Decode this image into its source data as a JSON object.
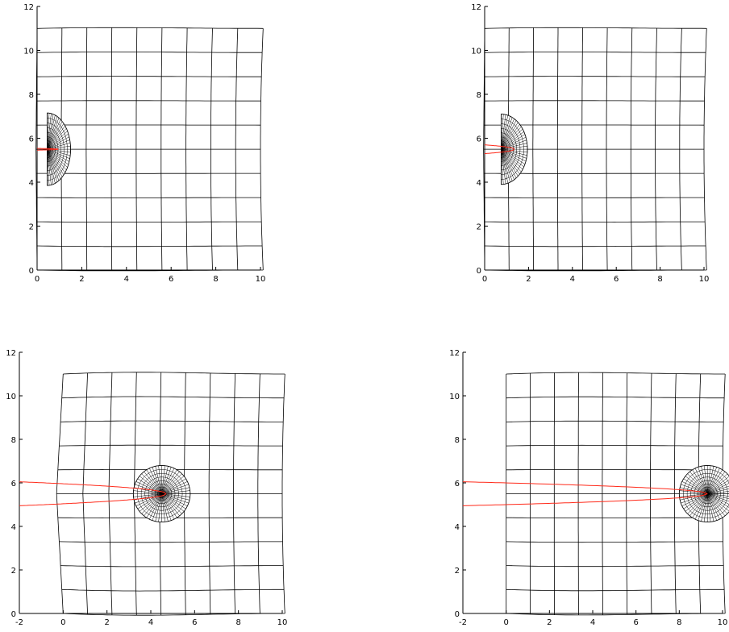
{
  "colors": {
    "mesh": "#000000",
    "crack": "#ff2a1a",
    "background": "#ffffff"
  },
  "chart_data": [
    {
      "type": "mesh",
      "panel": "top-left",
      "xlim": [
        0,
        10
      ],
      "ylim": [
        0,
        12
      ],
      "xticks": [
        0,
        2,
        4,
        6,
        8,
        10
      ],
      "yticks": [
        0,
        2,
        4,
        6,
        8,
        10,
        12
      ],
      "xtick_labels": [
        "0",
        "2",
        "4",
        "6",
        "8",
        "10"
      ],
      "ytick_labels": [
        "0",
        "2",
        "4",
        "6",
        "8",
        "10",
        "12"
      ],
      "mesh": {
        "x0": 0,
        "x1": 10,
        "y0": 0,
        "y1": 11,
        "cols": 9,
        "rows": 10,
        "widening": 0.12,
        "sag": 0.15,
        "left_pinch": 0.05
      },
      "refined_zone": {
        "cx": 0.45,
        "cy": 5.5,
        "rx": 1.05,
        "ry": 1.65,
        "half": true
      },
      "crack": {
        "tip_x": 0.95,
        "y": 5.5,
        "opening": 0.04
      }
    },
    {
      "type": "mesh",
      "panel": "top-right",
      "xlim": [
        0,
        10
      ],
      "ylim": [
        0,
        12
      ],
      "xticks": [
        0,
        2,
        4,
        6,
        8,
        10
      ],
      "yticks": [
        0,
        2,
        4,
        6,
        8,
        10,
        12
      ],
      "xtick_labels": [
        "0",
        "2",
        "4",
        "6",
        "8",
        "10"
      ],
      "ytick_labels": [
        "0",
        "2",
        "4",
        "6",
        "8",
        "10",
        "12"
      ],
      "mesh": {
        "x0": 0,
        "x1": 10,
        "y0": 0,
        "y1": 11,
        "cols": 9,
        "rows": 10,
        "widening": 0.12,
        "sag": 0.15,
        "left_pinch": 0.05
      },
      "refined_zone": {
        "cx": 0.75,
        "cy": 5.5,
        "rx": 1.2,
        "ry": 1.6,
        "half": true
      },
      "crack": {
        "tip_x": 1.35,
        "y": 5.5,
        "opening": 0.2
      }
    },
    {
      "type": "mesh",
      "panel": "bottom-left",
      "xlim": [
        -2,
        10
      ],
      "ylim": [
        0,
        12
      ],
      "xticks": [
        -2,
        0,
        2,
        4,
        6,
        8,
        10
      ],
      "yticks": [
        0,
        2,
        4,
        6,
        8,
        10,
        12
      ],
      "xtick_labels": [
        "-2",
        "0",
        "2",
        "4",
        "6",
        "8",
        "10"
      ],
      "ytick_labels": [
        "0",
        "2",
        "4",
        "6",
        "8",
        "10",
        "12"
      ],
      "mesh": {
        "x0": 0,
        "x1": 10,
        "y0": 0,
        "y1": 11,
        "cols": 9,
        "rows": 10,
        "widening": 0.12,
        "sag": 0.35,
        "left_pinch": 0.3
      },
      "refined_zone": {
        "cx": 4.5,
        "cy": 5.5,
        "rx": 1.3,
        "ry": 1.3,
        "half": false
      },
      "crack": {
        "tip_x": 4.7,
        "y": 5.5,
        "opening": 0.55
      }
    },
    {
      "type": "mesh",
      "panel": "bottom-right",
      "xlim": [
        -2,
        10
      ],
      "ylim": [
        0,
        12
      ],
      "xticks": [
        -2,
        0,
        2,
        4,
        6,
        8,
        10
      ],
      "yticks": [
        0,
        2,
        4,
        6,
        8,
        10,
        12
      ],
      "xtick_labels": [
        "-2",
        "0",
        "2",
        "4",
        "6",
        "8",
        "10"
      ],
      "ytick_labels": [
        "0",
        "2",
        "4",
        "6",
        "8",
        "10",
        "12"
      ],
      "mesh": {
        "x0": 0,
        "x1": 10,
        "y0": 0,
        "y1": 11,
        "cols": 9,
        "rows": 10,
        "widening": 0.12,
        "sag": 0.3,
        "left_pinch": 0.0
      },
      "refined_zone": {
        "cx": 9.3,
        "cy": 5.5,
        "rx": 1.3,
        "ry": 1.3,
        "half": false
      },
      "crack": {
        "tip_x": 9.3,
        "y": 5.5,
        "opening": 0.55
      }
    }
  ]
}
